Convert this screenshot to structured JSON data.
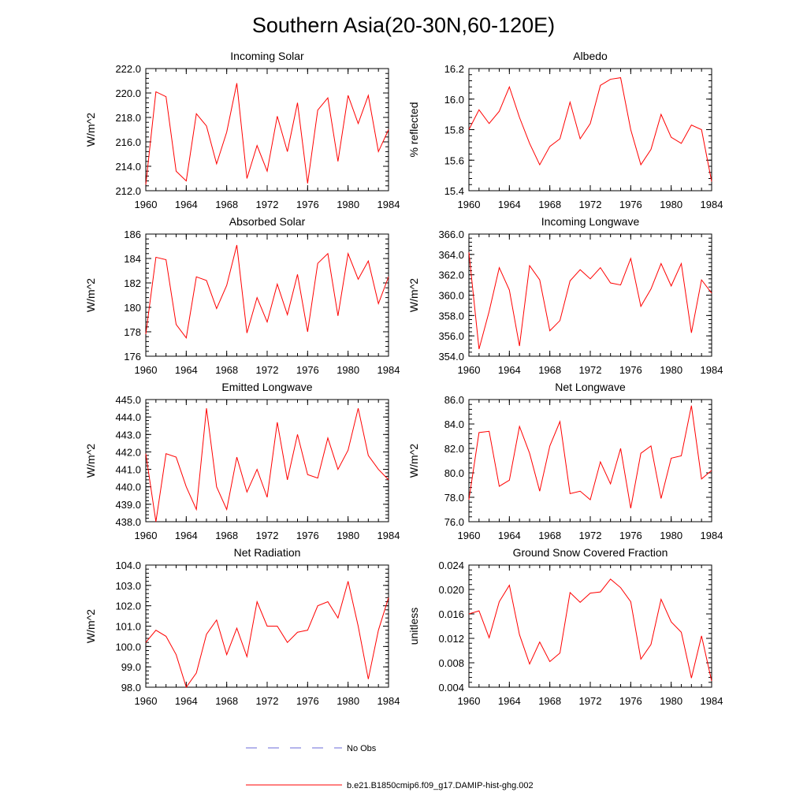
{
  "figure": {
    "title": "Southern Asia(20-30N,60-120E)",
    "line_color": "#ff0000",
    "obs_color": "#6a6ad8",
    "legend": [
      {
        "label": "No Obs",
        "style": "dashed",
        "color": "#6a6ad8"
      },
      {
        "label": "b.e21.B1850cmip6.f09_g17.DAMIP-hist-ghg.002",
        "style": "solid",
        "color": "#ff0000"
      }
    ]
  },
  "chart_data": [
    {
      "type": "line",
      "title": "Incoming Solar",
      "ylabel": "W/m^2",
      "xlim": [
        1960,
        1984
      ],
      "ylim": [
        212.0,
        222.0
      ],
      "xticks": [
        1960,
        1964,
        1968,
        1972,
        1976,
        1980,
        1984
      ],
      "yticks": [
        "212.0",
        "214.0",
        "216.0",
        "218.0",
        "220.0",
        "222.0"
      ],
      "x": [
        1960,
        1961,
        1962,
        1963,
        1964,
        1965,
        1966,
        1967,
        1968,
        1969,
        1970,
        1971,
        1972,
        1973,
        1974,
        1975,
        1976,
        1977,
        1978,
        1979,
        1980,
        1981,
        1982,
        1983,
        1984
      ],
      "series": [
        {
          "values": [
            212.5,
            220.1,
            219.7,
            213.6,
            212.8,
            218.3,
            217.3,
            214.2,
            216.8,
            220.8,
            213.0,
            215.7,
            213.6,
            218.1,
            215.2,
            219.2,
            212.6,
            218.6,
            219.6,
            214.4,
            219.8,
            217.5,
            219.8,
            215.2,
            217.0
          ]
        }
      ]
    },
    {
      "type": "line",
      "title": "Albedo",
      "ylabel": "% reflected",
      "xlim": [
        1960,
        1984
      ],
      "ylim": [
        15.4,
        16.2
      ],
      "xticks": [
        1960,
        1964,
        1968,
        1972,
        1976,
        1980,
        1984
      ],
      "yticks": [
        "15.4",
        "15.6",
        "15.8",
        "16.0",
        "16.2"
      ],
      "x": [
        1960,
        1961,
        1962,
        1963,
        1964,
        1965,
        1966,
        1967,
        1968,
        1969,
        1970,
        1971,
        1972,
        1973,
        1974,
        1975,
        1976,
        1977,
        1978,
        1979,
        1980,
        1981,
        1982,
        1983,
        1984
      ],
      "series": [
        {
          "values": [
            15.8,
            15.93,
            15.84,
            15.92,
            16.08,
            15.88,
            15.71,
            15.57,
            15.69,
            15.74,
            15.98,
            15.74,
            15.84,
            16.09,
            16.13,
            16.14,
            15.8,
            15.57,
            15.67,
            15.9,
            15.75,
            15.71,
            15.83,
            15.8,
            15.46
          ]
        }
      ]
    },
    {
      "type": "line",
      "title": "Absorbed Solar",
      "ylabel": "W/m^2",
      "xlim": [
        1960,
        1984
      ],
      "ylim": [
        176,
        186
      ],
      "xticks": [
        1960,
        1964,
        1968,
        1972,
        1976,
        1980,
        1984
      ],
      "yticks": [
        "176",
        "178",
        "180",
        "182",
        "184",
        "186"
      ],
      "x": [
        1960,
        1961,
        1962,
        1963,
        1964,
        1965,
        1966,
        1967,
        1968,
        1969,
        1970,
        1971,
        1972,
        1973,
        1974,
        1975,
        1976,
        1977,
        1978,
        1979,
        1980,
        1981,
        1982,
        1983,
        1984
      ],
      "series": [
        {
          "values": [
            177.8,
            184.1,
            183.9,
            178.6,
            177.5,
            182.5,
            182.2,
            179.9,
            181.8,
            185.1,
            177.9,
            180.8,
            178.8,
            181.9,
            179.4,
            182.7,
            178.0,
            183.6,
            184.4,
            179.3,
            184.4,
            182.3,
            183.8,
            180.3,
            182.5
          ]
        }
      ]
    },
    {
      "type": "line",
      "title": "Incoming Longwave",
      "ylabel": "W/m^2",
      "xlim": [
        1960,
        1984
      ],
      "ylim": [
        354.0,
        366.0
      ],
      "xticks": [
        1960,
        1964,
        1968,
        1972,
        1976,
        1980,
        1984
      ],
      "yticks": [
        "354.0",
        "356.0",
        "358.0",
        "360.0",
        "362.0",
        "364.0",
        "366.0"
      ],
      "x": [
        1960,
        1961,
        1962,
        1963,
        1964,
        1965,
        1966,
        1967,
        1968,
        1969,
        1970,
        1971,
        1972,
        1973,
        1974,
        1975,
        1976,
        1977,
        1978,
        1979,
        1980,
        1981,
        1982,
        1983,
        1984
      ],
      "series": [
        {
          "values": [
            364.2,
            354.7,
            358.4,
            362.7,
            360.5,
            355.0,
            362.9,
            361.5,
            356.5,
            357.5,
            361.4,
            362.5,
            361.6,
            362.7,
            361.2,
            361.0,
            363.6,
            358.9,
            360.6,
            363.1,
            360.9,
            363.1,
            356.3,
            361.5,
            360.2
          ]
        }
      ]
    },
    {
      "type": "line",
      "title": "Emitted Longwave",
      "ylabel": "W/m^2",
      "xlim": [
        1960,
        1984
      ],
      "ylim": [
        438.0,
        445.0
      ],
      "xticks": [
        1960,
        1964,
        1968,
        1972,
        1976,
        1980,
        1984
      ],
      "yticks": [
        "438.0",
        "439.0",
        "440.0",
        "441.0",
        "442.0",
        "443.0",
        "444.0",
        "445.0"
      ],
      "x": [
        1960,
        1961,
        1962,
        1963,
        1964,
        1965,
        1966,
        1967,
        1968,
        1969,
        1970,
        1971,
        1972,
        1973,
        1974,
        1975,
        1976,
        1977,
        1978,
        1979,
        1980,
        1981,
        1982,
        1983,
        1984
      ],
      "series": [
        {
          "values": [
            441.9,
            437.9,
            441.9,
            441.7,
            440.0,
            438.7,
            444.5,
            440.0,
            438.7,
            441.7,
            439.7,
            441.0,
            439.4,
            443.7,
            440.4,
            443.0,
            440.7,
            440.5,
            442.8,
            441.0,
            442.1,
            444.5,
            441.8,
            441.0,
            440.4
          ]
        }
      ]
    },
    {
      "type": "line",
      "title": "Net Longwave",
      "ylabel": "W/m^2",
      "xlim": [
        1960,
        1984
      ],
      "ylim": [
        76.0,
        86.0
      ],
      "xticks": [
        1960,
        1964,
        1968,
        1972,
        1976,
        1980,
        1984
      ],
      "yticks": [
        "76.0",
        "78.0",
        "80.0",
        "82.0",
        "84.0",
        "86.0"
      ],
      "x": [
        1960,
        1961,
        1962,
        1963,
        1964,
        1965,
        1966,
        1967,
        1968,
        1969,
        1970,
        1971,
        1972,
        1973,
        1974,
        1975,
        1976,
        1977,
        1978,
        1979,
        1980,
        1981,
        1982,
        1983,
        1984
      ],
      "series": [
        {
          "values": [
            77.8,
            83.3,
            83.4,
            78.9,
            79.4,
            83.8,
            81.6,
            78.5,
            82.2,
            84.2,
            78.3,
            78.5,
            77.8,
            80.9,
            79.1,
            82.0,
            77.1,
            81.6,
            82.2,
            77.9,
            81.2,
            81.4,
            85.5,
            79.5,
            80.2
          ]
        }
      ]
    },
    {
      "type": "line",
      "title": "Net Radiation",
      "ylabel": "W/m^2",
      "xlim": [
        1960,
        1984
      ],
      "ylim": [
        98.0,
        104.0
      ],
      "xticks": [
        1960,
        1964,
        1968,
        1972,
        1976,
        1980,
        1984
      ],
      "yticks": [
        "98.0",
        "99.0",
        "100.0",
        "101.0",
        "102.0",
        "103.0",
        "104.0"
      ],
      "x": [
        1960,
        1961,
        1962,
        1963,
        1964,
        1965,
        1966,
        1967,
        1968,
        1969,
        1970,
        1971,
        1972,
        1973,
        1974,
        1975,
        1976,
        1977,
        1978,
        1979,
        1980,
        1981,
        1982,
        1983,
        1984
      ],
      "series": [
        {
          "values": [
            100.2,
            100.8,
            100.5,
            99.6,
            98.0,
            98.7,
            100.6,
            101.3,
            99.6,
            100.9,
            99.5,
            102.2,
            101.0,
            101.0,
            100.2,
            100.7,
            100.8,
            102.0,
            102.2,
            101.4,
            103.2,
            101.0,
            98.4,
            100.8,
            102.4
          ]
        }
      ]
    },
    {
      "type": "line",
      "title": "Ground Snow Covered Fraction",
      "ylabel": "unitless",
      "xlim": [
        1960,
        1984
      ],
      "ylim": [
        0.004,
        0.024
      ],
      "xticks": [
        1960,
        1964,
        1968,
        1972,
        1976,
        1980,
        1984
      ],
      "yticks": [
        "0.004",
        "0.008",
        "0.012",
        "0.016",
        "0.020",
        "0.024"
      ],
      "x": [
        1960,
        1961,
        1962,
        1963,
        1964,
        1965,
        1966,
        1967,
        1968,
        1969,
        1970,
        1971,
        1972,
        1973,
        1974,
        1975,
        1976,
        1977,
        1978,
        1979,
        1980,
        1981,
        1982,
        1983,
        1984
      ],
      "series": [
        {
          "values": [
            0.016,
            0.0165,
            0.0121,
            0.018,
            0.0207,
            0.0126,
            0.0078,
            0.0114,
            0.0082,
            0.0096,
            0.0195,
            0.0179,
            0.0194,
            0.0196,
            0.0217,
            0.0203,
            0.018,
            0.0086,
            0.011,
            0.0184,
            0.0147,
            0.013,
            0.0055,
            0.0124,
            0.005
          ]
        }
      ]
    }
  ]
}
